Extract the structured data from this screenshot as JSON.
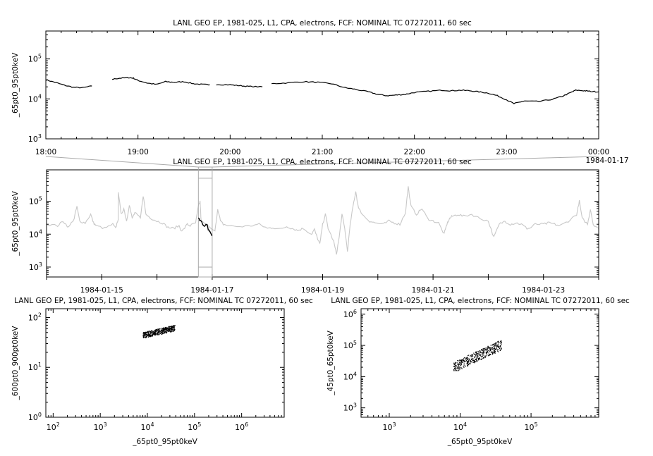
{
  "chart_data": [
    {
      "id": "top-timeseries",
      "type": "line",
      "title": "LANL GEO EP, 1981-025, L1, CPA, electrons, FCF: NOMINAL TC 07272011, 60 sec",
      "xlabel": "",
      "ylabel": "_65pt0_95pt0keV",
      "yscale": "log",
      "ylim": [
        1000,
        500000
      ],
      "ytick_labels": [
        {
          "base": "10",
          "exp": "3",
          "value": 1000
        },
        {
          "base": "10",
          "exp": "4",
          "value": 10000
        },
        {
          "base": "10",
          "exp": "5",
          "value": 100000
        }
      ],
      "xlim": [
        18,
        24
      ],
      "xtick_labels": [
        {
          "label": "18:00",
          "value": 18
        },
        {
          "label": "19:00",
          "value": 19
        },
        {
          "label": "20:00",
          "value": 20
        },
        {
          "label": "21:00",
          "value": 21
        },
        {
          "label": "22:00",
          "value": 22
        },
        {
          "label": "23:00",
          "value": 23
        },
        {
          "label": "00:00",
          "value": 24
        }
      ],
      "x_end_date": "1984-01-17",
      "segments": [
        [
          [
            18.0,
            30000
          ],
          [
            18.1,
            26000
          ],
          [
            18.2,
            22000
          ],
          [
            18.3,
            19500
          ],
          [
            18.4,
            19000
          ],
          [
            18.5,
            21000
          ]
        ],
        [
          [
            18.72,
            31000
          ],
          [
            18.8,
            33000
          ],
          [
            18.9,
            34000
          ],
          [
            18.95,
            33000
          ],
          [
            19.0,
            29000
          ],
          [
            19.1,
            25000
          ],
          [
            19.2,
            23000
          ],
          [
            19.3,
            27000
          ],
          [
            19.4,
            26000
          ],
          [
            19.5,
            27000
          ],
          [
            19.6,
            24000
          ],
          [
            19.7,
            23000
          ],
          [
            19.78,
            22500
          ]
        ],
        [
          [
            19.85,
            23000
          ],
          [
            20.0,
            22500
          ],
          [
            20.1,
            21500
          ],
          [
            20.2,
            20500
          ],
          [
            20.35,
            20000
          ]
        ],
        [
          [
            20.45,
            24000
          ],
          [
            20.6,
            25000
          ],
          [
            20.8,
            27000
          ],
          [
            20.95,
            26000
          ],
          [
            21.1,
            24000
          ],
          [
            21.25,
            19000
          ],
          [
            21.35,
            17500
          ],
          [
            21.5,
            15000
          ],
          [
            21.6,
            13000
          ],
          [
            21.7,
            12000
          ],
          [
            21.8,
            12500
          ],
          [
            21.9,
            13000
          ],
          [
            22.0,
            14500
          ],
          [
            22.15,
            15500
          ],
          [
            22.3,
            16500
          ],
          [
            22.4,
            16000
          ],
          [
            22.5,
            16500
          ],
          [
            22.6,
            16000
          ],
          [
            22.7,
            15000
          ],
          [
            22.8,
            14000
          ],
          [
            22.9,
            12000
          ],
          [
            23.0,
            9500
          ],
          [
            23.08,
            7600
          ],
          [
            23.15,
            8400
          ],
          [
            23.2,
            8800
          ],
          [
            23.35,
            8600
          ],
          [
            23.5,
            9800
          ],
          [
            23.6,
            11500
          ],
          [
            23.7,
            14500
          ],
          [
            23.75,
            16500
          ],
          [
            23.85,
            16000
          ],
          [
            23.9,
            15500
          ],
          [
            24.0,
            15000
          ]
        ]
      ]
    },
    {
      "id": "middle-timeseries",
      "type": "line",
      "title": "LANL GEO EP, 1981-025, L1, CPA, electrons, FCF: NOMINAL TC 07272011, 60 sec",
      "xlabel": "",
      "ylabel": "_65pt0_95pt0keV",
      "yscale": "log",
      "ylim": [
        500,
        900000
      ],
      "ytick_labels": [
        {
          "base": "10",
          "exp": "3",
          "value": 1000
        },
        {
          "base": "10",
          "exp": "4",
          "value": 10000
        },
        {
          "base": "10",
          "exp": "5",
          "value": 100000
        }
      ],
      "xlim": [
        14,
        24
      ],
      "xtick_labels": [
        {
          "label": "1984-01-15",
          "value": 15
        },
        {
          "label": "1984-01-17",
          "value": 17
        },
        {
          "label": "1984-01-19",
          "value": 19
        },
        {
          "label": "1984-01-21",
          "value": 21
        },
        {
          "label": "1984-01-23",
          "value": 23
        }
      ],
      "context_series": [
        [
          14.0,
          20000
        ],
        [
          14.2,
          18000
        ],
        [
          14.3,
          25000
        ],
        [
          14.4,
          16000
        ],
        [
          14.5,
          30000
        ],
        [
          14.55,
          70000
        ],
        [
          14.6,
          25000
        ],
        [
          14.7,
          22000
        ],
        [
          14.8,
          40000
        ],
        [
          14.85,
          22000
        ],
        [
          14.9,
          18000
        ],
        [
          15.05,
          15000
        ],
        [
          15.2,
          20000
        ],
        [
          15.25,
          15000
        ],
        [
          15.3,
          30000
        ],
        [
          15.3,
          200000
        ],
        [
          15.35,
          40000
        ],
        [
          15.4,
          60000
        ],
        [
          15.45,
          25000
        ],
        [
          15.5,
          80000
        ],
        [
          15.55,
          30000
        ],
        [
          15.6,
          45000
        ],
        [
          15.7,
          30000
        ],
        [
          15.75,
          150000
        ],
        [
          15.8,
          40000
        ],
        [
          15.9,
          30000
        ],
        [
          16.0,
          25000
        ],
        [
          16.1,
          22000
        ],
        [
          16.2,
          16000
        ],
        [
          16.3,
          15000
        ],
        [
          16.4,
          18000
        ],
        [
          16.45,
          12000
        ],
        [
          16.55,
          20000
        ],
        [
          16.6,
          18000
        ],
        [
          16.7,
          22000
        ],
        [
          16.75,
          70000
        ],
        [
          16.78,
          100000
        ],
        [
          16.8,
          25000
        ],
        [
          17.05,
          12000
        ],
        [
          17.1,
          60000
        ],
        [
          17.15,
          25000
        ],
        [
          17.2,
          20000
        ],
        [
          17.3,
          18000
        ],
        [
          17.5,
          17000
        ],
        [
          17.7,
          18000
        ],
        [
          17.85,
          20000
        ],
        [
          18.0,
          15000
        ],
        [
          18.1,
          16000
        ],
        [
          18.2,
          14000
        ],
        [
          18.35,
          17000
        ],
        [
          18.45,
          15000
        ],
        [
          18.55,
          13000
        ],
        [
          18.65,
          15000
        ],
        [
          18.8,
          10000
        ],
        [
          18.85,
          14000
        ],
        [
          18.9,
          8000
        ],
        [
          18.95,
          5000
        ],
        [
          19.0,
          20000
        ],
        [
          19.05,
          40000
        ],
        [
          19.1,
          15000
        ],
        [
          19.2,
          6000
        ],
        [
          19.25,
          2500
        ],
        [
          19.3,
          8000
        ],
        [
          19.35,
          40000
        ],
        [
          19.4,
          15000
        ],
        [
          19.45,
          3000
        ],
        [
          19.5,
          20000
        ],
        [
          19.55,
          70000
        ],
        [
          19.6,
          200000
        ],
        [
          19.65,
          60000
        ],
        [
          19.75,
          35000
        ],
        [
          19.85,
          25000
        ],
        [
          19.95,
          22000
        ],
        [
          20.1,
          20000
        ],
        [
          20.2,
          25000
        ],
        [
          20.3,
          22000
        ],
        [
          20.4,
          20000
        ],
        [
          20.5,
          45000
        ],
        [
          20.55,
          280000
        ],
        [
          20.6,
          70000
        ],
        [
          20.7,
          40000
        ],
        [
          20.8,
          60000
        ],
        [
          20.9,
          30000
        ],
        [
          21.0,
          25000
        ],
        [
          21.1,
          22000
        ],
        [
          21.2,
          10000
        ],
        [
          21.25,
          20000
        ],
        [
          21.3,
          30000
        ],
        [
          21.35,
          35000
        ],
        [
          21.45,
          40000
        ],
        [
          21.55,
          35000
        ],
        [
          21.7,
          40000
        ],
        [
          21.85,
          30000
        ],
        [
          22.0,
          25000
        ],
        [
          22.1,
          8000
        ],
        [
          22.2,
          20000
        ],
        [
          22.3,
          25000
        ],
        [
          22.4,
          20000
        ],
        [
          22.5,
          22000
        ],
        [
          22.6,
          20000
        ],
        [
          22.7,
          15000
        ],
        [
          22.75,
          15000
        ],
        [
          22.85,
          20000
        ],
        [
          23.0,
          20000
        ],
        [
          23.1,
          22000
        ],
        [
          23.2,
          20000
        ],
        [
          23.3,
          18000
        ],
        [
          23.45,
          25000
        ],
        [
          23.6,
          40000
        ],
        [
          23.65,
          100000
        ],
        [
          23.7,
          30000
        ],
        [
          23.8,
          20000
        ],
        [
          23.85,
          60000
        ],
        [
          23.9,
          20000
        ],
        [
          24.0,
          15000
        ]
      ],
      "focus_series": [
        [
          16.75,
          30000
        ],
        [
          16.8,
          25000
        ],
        [
          16.85,
          18000
        ],
        [
          16.9,
          20000
        ],
        [
          16.93,
          14000
        ],
        [
          16.96,
          12000
        ],
        [
          17.0,
          9000
        ]
      ],
      "zoom_window": {
        "start": 16.75,
        "end": 17.0,
        "ymin": 1000,
        "ymax": 500000
      }
    },
    {
      "id": "scatter-left",
      "type": "scatter",
      "title": "LANL GEO EP, 1981-025, L1, CPA, electrons, FCF: NOMINAL TC 07272011, 60 sec",
      "xlabel": "_65pt0_95pt0keV",
      "ylabel": "_600pt0_900pt0keV",
      "xscale": "log",
      "yscale": "log",
      "xlim": [
        70,
        8000000
      ],
      "ylim": [
        1,
        150
      ],
      "xtick_labels": [
        {
          "base": "10",
          "exp": "2",
          "value": 100
        },
        {
          "base": "10",
          "exp": "3",
          "value": 1000
        },
        {
          "base": "10",
          "exp": "4",
          "value": 10000
        },
        {
          "base": "10",
          "exp": "5",
          "value": 100000
        },
        {
          "base": "10",
          "exp": "6",
          "value": 1000000
        }
      ],
      "ytick_labels": [
        {
          "base": "10",
          "exp": "0",
          "value": 1
        },
        {
          "base": "10",
          "exp": "1",
          "value": 10
        },
        {
          "base": "10",
          "exp": "2",
          "value": 100
        }
      ],
      "cluster": {
        "x_range": [
          8000,
          38000
        ],
        "y_range": [
          40,
          70
        ]
      }
    },
    {
      "id": "scatter-right",
      "type": "scatter",
      "title": "LANL GEO EP, 1981-025, L1, CPA, electrons, FCF: NOMINAL TC 07272011, 60 sec",
      "xlabel": "_65pt0_95pt0keV",
      "ylabel": "_45pt0_65pt0keV",
      "xscale": "log",
      "yscale": "log",
      "xlim": [
        400,
        900000
      ],
      "ylim": [
        500,
        1500000
      ],
      "xtick_labels": [
        {
          "base": "10",
          "exp": "3",
          "value": 1000
        },
        {
          "base": "10",
          "exp": "4",
          "value": 10000
        },
        {
          "base": "10",
          "exp": "5",
          "value": 100000
        }
      ],
      "ytick_labels": [
        {
          "base": "10",
          "exp": "3",
          "value": 1000
        },
        {
          "base": "10",
          "exp": "4",
          "value": 10000
        },
        {
          "base": "10",
          "exp": "5",
          "value": 100000
        },
        {
          "base": "10",
          "exp": "6",
          "value": 1000000
        }
      ],
      "cluster": {
        "x_range": [
          8000,
          38000
        ],
        "y_range": [
          16000,
          150000
        ]
      }
    }
  ]
}
